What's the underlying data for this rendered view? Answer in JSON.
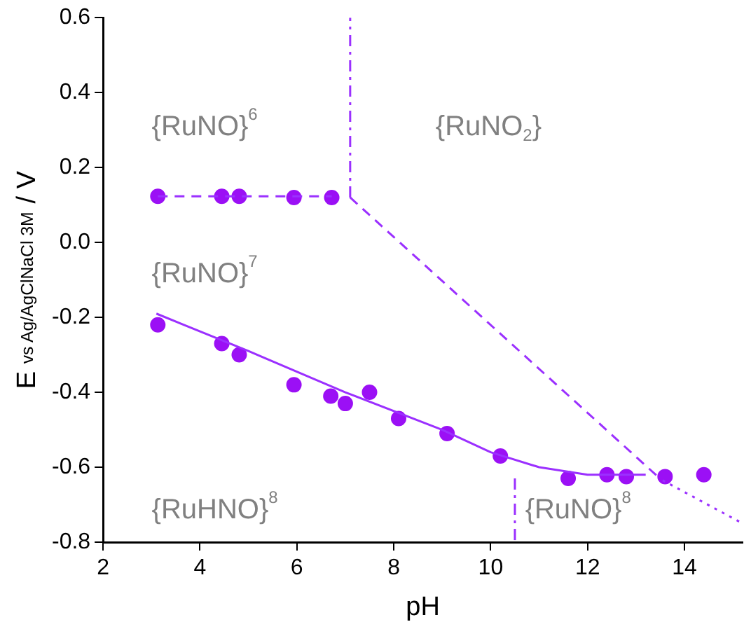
{
  "chart_data": {
    "type": "scatter",
    "xlabel": "pH",
    "ylabel": "E $_{vs Ag/AgClNaCl 3M}$ / V",
    "xlim": [
      2,
      15.2
    ],
    "xticks": [
      2,
      4,
      6,
      8,
      10,
      12,
      14
    ],
    "ylim": [
      -0.8,
      0.6
    ],
    "yticks": [
      -0.8,
      -0.6,
      -0.4,
      -0.2,
      {
        "value": 0,
        "label": "0.0"
      },
      0.2,
      0.4,
      0.6
    ],
    "grid": false,
    "legend": false,
    "marker": "circle",
    "series": [
      {
        "type": "line",
        "color": "#9b30ff",
        "line_style": "dashed",
        "marker": "none",
        "x": [
          3.13,
          6.72
        ],
        "values": [
          0.123,
          0.123
        ]
      },
      {
        "type": "line",
        "color": "#9b30ff",
        "line_style": "dashed",
        "marker": "none",
        "x": [
          7.1,
          13.45
        ],
        "values": [
          0.12,
          -0.625
        ]
      },
      {
        "type": "line",
        "color": "#9b30ff",
        "line_style": "dotted",
        "marker": "none",
        "x": [
          13.55,
          15.2
        ],
        "values": [
          -0.635,
          -0.75
        ]
      },
      {
        "type": "line",
        "color": "#9b30ff",
        "line_style": "dashdot",
        "marker": "none",
        "x": [
          7.1,
          7.1
        ],
        "values": [
          0.12,
          0.6
        ]
      },
      {
        "type": "line",
        "color": "#9b30ff",
        "line_style": "dashdot",
        "marker": "none",
        "x": [
          10.5,
          10.5
        ],
        "values": [
          -0.63,
          -0.8
        ]
      },
      {
        "type": "line",
        "color": "#9b30ff",
        "line_style": "solid",
        "marker": "none",
        "x": [
          3.1,
          5,
          7,
          9,
          10,
          11,
          12,
          13.2
        ],
        "values": [
          -0.19,
          -0.29,
          -0.4,
          -0.5,
          -0.56,
          -0.6,
          -0.62,
          -0.62
        ]
      },
      {
        "type": "scatter",
        "color": "#9b10f5",
        "x": [
          3.13,
          4.45,
          4.81,
          5.94,
          6.72
        ],
        "values": [
          0.123,
          0.123,
          0.123,
          0.12,
          0.12
        ]
      },
      {
        "type": "scatter",
        "color": "#9b10f5",
        "x": [
          3.13,
          4.45,
          4.81,
          5.94,
          6.7,
          7.0,
          7.5,
          8.1,
          9.1,
          10.2,
          11.6,
          12.4,
          12.8,
          13.6,
          14.4
        ],
        "values": [
          -0.22,
          -0.27,
          -0.3,
          -0.38,
          -0.41,
          -0.43,
          -0.4,
          -0.47,
          -0.51,
          -0.57,
          -0.63,
          -0.62,
          -0.625,
          -0.625,
          -0.62
        ]
      }
    ],
    "annotations": [
      "{RuNO}$^{6}$",
      "{RuNO$_{2}$}",
      "{RuNO}$^{7}$",
      "{RuHNO}$^{8}$",
      "{RuNO}$^{8}$"
    ]
  }
}
